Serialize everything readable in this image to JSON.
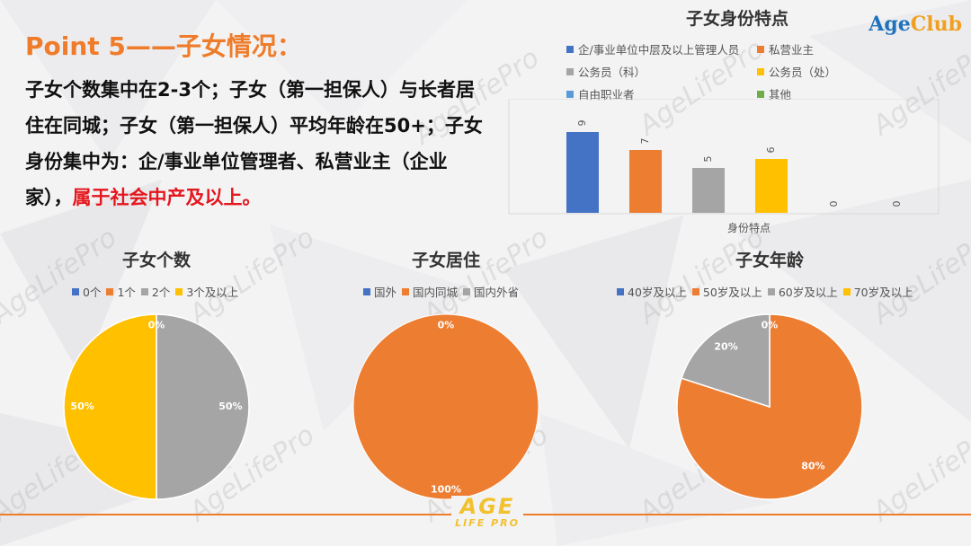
{
  "page": {
    "title": "Point 5——子女情况：",
    "summary_text": "子女个数集中在2-3个；子女（第一担保人）与长者居住在同城；子女（第一担保人）平均年龄在50+；子女身份集中为：企/事业单位管理者、私营业主（企业家），",
    "summary_highlight": "属于社会中产及以上。",
    "brand": {
      "main": "AgeClub",
      "part1": "Age",
      "part2": "Club"
    },
    "watermark": "AgeLifePro",
    "footer_logo_top": "AGE",
    "footer_logo_bottom": "LIFE PRO"
  },
  "chart_data": [
    {
      "type": "bar",
      "title": "子女身份特点",
      "xlabel": "身份特点",
      "ylabel": "",
      "categories": [
        "企/事业单位中层及以上管理人员",
        "私营业主",
        "公务员（科）",
        "公务员（处）",
        "自由职业者",
        "其他"
      ],
      "values": [
        9,
        7,
        5,
        6,
        0,
        0
      ],
      "colors": [
        "#4472c4",
        "#ed7d31",
        "#a5a5a5",
        "#ffc000",
        "#5b9bd5",
        "#70ad47"
      ],
      "ylim": [
        0,
        12
      ],
      "data_labels": true,
      "legend": "top"
    },
    {
      "type": "pie",
      "title": "子女个数",
      "categories": [
        "0个",
        "1个",
        "2个",
        "3个及以上"
      ],
      "values": [
        0,
        0,
        50,
        50
      ],
      "labels": [
        "",
        "0%",
        "50%",
        "50%"
      ],
      "colors": [
        "#4472c4",
        "#ed7d31",
        "#a5a5a5",
        "#ffc000"
      ],
      "legend": "top"
    },
    {
      "type": "pie",
      "title": "子女居住",
      "categories": [
        "国外",
        "国内同城",
        "国内外省"
      ],
      "values": [
        0,
        100,
        0
      ],
      "labels": [
        "",
        "100%",
        "0%"
      ],
      "colors": [
        "#4472c4",
        "#ed7d31",
        "#a5a5a5"
      ],
      "legend": "top"
    },
    {
      "type": "pie",
      "title": "子女年龄",
      "categories": [
        "40岁及以上",
        "50岁及以上",
        "60岁及以上",
        "70岁及以上"
      ],
      "values": [
        0,
        80,
        20,
        0
      ],
      "labels": [
        "",
        "80%",
        "20%",
        "0%"
      ],
      "colors": [
        "#4472c4",
        "#ed7d31",
        "#a5a5a5",
        "#ffc000"
      ],
      "legend": "top"
    }
  ]
}
